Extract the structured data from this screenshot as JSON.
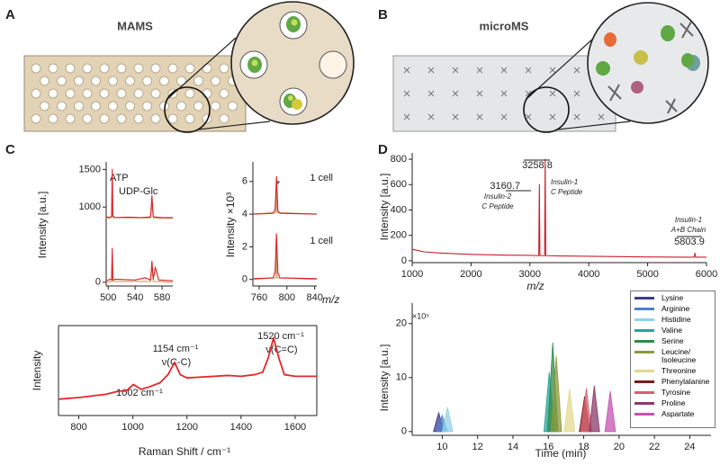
{
  "panel_labels": [
    "A",
    "B",
    "C",
    "D"
  ],
  "diagrams": [
    {
      "title": "MAMS"
    },
    {
      "title": "microMS"
    }
  ],
  "chart_data": [
    {
      "type": "line",
      "ylabel": "Intensity [a.u.]",
      "xlim": [
        497,
        596
      ],
      "xticks": [
        500,
        540,
        580
      ],
      "ylim": [
        -50,
        1600
      ],
      "yticks": [
        0,
        1000,
        1500
      ],
      "annotations": [
        "ATP",
        "UDP-Glc"
      ],
      "series": [
        {
          "color": "#c9a06a",
          "x": [
            497,
            505,
            506,
            507,
            563,
            565,
            567,
            596
          ],
          "values": [
            850,
            860,
            1000,
            860,
            855,
            1050,
            855,
            850
          ]
        },
        {
          "color": "#d62027",
          "x": [
            497,
            502,
            505,
            506,
            507,
            510,
            530,
            550,
            563,
            565,
            567,
            580,
            596
          ],
          "values": [
            870,
            860,
            880,
            1500,
            880,
            860,
            865,
            860,
            870,
            1150,
            870,
            860,
            860
          ]
        },
        {
          "color": "#c9a06a",
          "x": [
            497,
            505,
            506,
            507,
            563,
            565,
            567,
            596
          ],
          "values": [
            0,
            10,
            320,
            10,
            10,
            230,
            10,
            0
          ]
        },
        {
          "color": "#d62027",
          "x": [
            497,
            503,
            505,
            506,
            507,
            510,
            540,
            555,
            563,
            565,
            567,
            570,
            575,
            596
          ],
          "values": [
            20,
            40,
            30,
            450,
            30,
            40,
            30,
            60,
            30,
            280,
            40,
            200,
            30,
            20
          ]
        }
      ]
    },
    {
      "type": "line",
      "ylabel": "Intensity ×10³",
      "xlabel": "m/z",
      "xlim": [
        751,
        843
      ],
      "xticks": [
        760,
        800,
        840
      ],
      "ylim": [
        -0.4,
        7.2
      ],
      "yticks": [
        0,
        2,
        4,
        6
      ],
      "annotations": [
        "1 cell",
        "1 cell",
        "*"
      ],
      "series": [
        {
          "color": "#c9a06a",
          "x": [
            751,
            784,
            785,
            786,
            843
          ],
          "values": [
            4,
            4.1,
            5.8,
            4.1,
            4
          ]
        },
        {
          "color": "#d62027",
          "x": [
            751,
            780,
            783,
            785,
            787,
            790,
            843
          ],
          "values": [
            4,
            4.05,
            4.3,
            6.3,
            4.2,
            4.05,
            4
          ]
        },
        {
          "color": "#c9a06a",
          "x": [
            751,
            784,
            785,
            786,
            843
          ],
          "values": [
            0,
            0.1,
            2.2,
            0.1,
            0
          ]
        },
        {
          "color": "#d62027",
          "x": [
            751,
            780,
            783,
            785,
            787,
            790,
            843
          ],
          "values": [
            0.05,
            0.1,
            0.5,
            2.8,
            0.4,
            0.1,
            0.05
          ]
        }
      ]
    },
    {
      "type": "line",
      "ylabel": "Intensity",
      "xlabel": "Raman Shift / cm⁻¹",
      "xlim": [
        725,
        1680
      ],
      "xticks": [
        800,
        1000,
        1200,
        1400,
        1600
      ],
      "ylim": [
        0,
        1.1
      ],
      "annotations": [
        "1002 cm⁻¹",
        "1154 cm⁻¹",
        "ν(C-C)",
        "1520 cm⁻¹",
        "ν(C=C)"
      ],
      "series": [
        {
          "color": "#e8262a",
          "x": [
            725,
            800,
            900,
            950,
            975,
            1002,
            1030,
            1060,
            1100,
            1130,
            1154,
            1175,
            1200,
            1250,
            1300,
            1350,
            1400,
            1450,
            1480,
            1500,
            1520,
            1540,
            1560,
            1600,
            1680
          ],
          "values": [
            0.2,
            0.22,
            0.26,
            0.3,
            0.3,
            0.38,
            0.32,
            0.35,
            0.4,
            0.5,
            0.65,
            0.5,
            0.46,
            0.47,
            0.48,
            0.49,
            0.48,
            0.5,
            0.53,
            0.7,
            0.95,
            0.7,
            0.5,
            0.48,
            0.48
          ]
        }
      ]
    },
    {
      "type": "line",
      "ylabel": "Intensity [a.u.]",
      "xlabel": "m/z",
      "xlim": [
        1000,
        6000
      ],
      "xticks": [
        1000,
        2000,
        3000,
        4000,
        5000,
        6000
      ],
      "ylim": [
        -15,
        850
      ],
      "yticks": [
        0,
        200,
        400,
        600,
        800
      ],
      "annotations": [
        "3258.8",
        "3160.7",
        "Insulin-2",
        "C Peptide",
        "Insulin-1",
        "C Peptide",
        "Insulin-1",
        "A+B Chain",
        "5803.9"
      ],
      "series": [
        {
          "color": "#c8202c",
          "x": [
            1000,
            1200,
            1500,
            2000,
            2500,
            3000,
            3150,
            3160.7,
            3170,
            3250,
            3258.8,
            3270,
            3500,
            4000,
            5000,
            5790,
            5803.9,
            5815,
            6000
          ],
          "values": [
            90,
            70,
            60,
            50,
            45,
            42,
            40,
            600,
            40,
            40,
            800,
            40,
            38,
            35,
            30,
            28,
            60,
            28,
            28
          ]
        }
      ]
    },
    {
      "type": "area",
      "ylabel": "Intensity [a.u.]",
      "xlabel": "Time (min)",
      "xlim": [
        8.3,
        25.2
      ],
      "xticks": [
        10,
        12,
        14,
        16,
        18,
        20,
        22,
        24
      ],
      "ylim": [
        -0.7,
        23.8
      ],
      "yticks": [
        0,
        10,
        20
      ],
      "annotations": [
        "×10⁵"
      ],
      "series": [
        {
          "name": "Lysine",
          "color": "#3b3b8f",
          "x": [
            9.5,
            9.65,
            9.8,
            9.95,
            10.1
          ],
          "values": [
            0,
            1.8,
            3.5,
            1.8,
            0
          ]
        },
        {
          "name": "Arginine",
          "color": "#4f7fc9",
          "x": [
            9.7,
            9.85,
            10.0,
            10.15,
            10.3
          ],
          "values": [
            0,
            1.5,
            3.0,
            1.5,
            0
          ]
        },
        {
          "name": "Histidine",
          "color": "#8fd2ea",
          "x": [
            10.0,
            10.15,
            10.3,
            10.45,
            10.6
          ],
          "values": [
            0,
            2.2,
            4.5,
            2.2,
            0
          ]
        },
        {
          "name": "Valine",
          "color": "#2aa39b",
          "x": [
            15.75,
            15.9,
            16.05,
            16.2,
            16.35
          ],
          "values": [
            0,
            5.5,
            11,
            5.5,
            0
          ]
        },
        {
          "name": "Serine",
          "color": "#2e8b4b",
          "x": [
            15.95,
            16.1,
            16.25,
            16.4,
            16.55
          ],
          "values": [
            0,
            8,
            16.5,
            8,
            0
          ]
        },
        {
          "name": "Leucine/ Isoleucine",
          "color": "#8c9a3a",
          "x": [
            16.15,
            16.3,
            16.45,
            16.6,
            16.75
          ],
          "values": [
            0,
            7,
            14,
            7,
            0
          ]
        },
        {
          "name": "Threonine",
          "color": "#e3d98f",
          "x": [
            16.9,
            17.05,
            17.2,
            17.35,
            17.5
          ],
          "values": [
            0,
            4,
            8,
            4,
            0
          ]
        },
        {
          "name": "Phenylalanine",
          "color": "#7a1c1c",
          "x": [
            17.75,
            17.9,
            18.05,
            18.2,
            18.35
          ],
          "values": [
            0,
            3.2,
            6.5,
            3.2,
            0
          ]
        },
        {
          "name": "Tyrosine",
          "color": "#d9606f",
          "x": [
            17.85,
            18.0,
            18.15,
            18.3,
            18.45
          ],
          "values": [
            0,
            4,
            8,
            4,
            0
          ]
        },
        {
          "name": "Proline",
          "color": "#8a3a6b",
          "x": [
            18.3,
            18.45,
            18.6,
            18.75,
            18.9
          ],
          "values": [
            0,
            4.2,
            8.5,
            4.2,
            0
          ]
        },
        {
          "name": "Aspartate",
          "color": "#c453b4",
          "x": [
            19.2,
            19.35,
            19.5,
            19.65,
            19.8
          ],
          "values": [
            0,
            3.7,
            7.5,
            3.7,
            0
          ]
        }
      ]
    }
  ]
}
